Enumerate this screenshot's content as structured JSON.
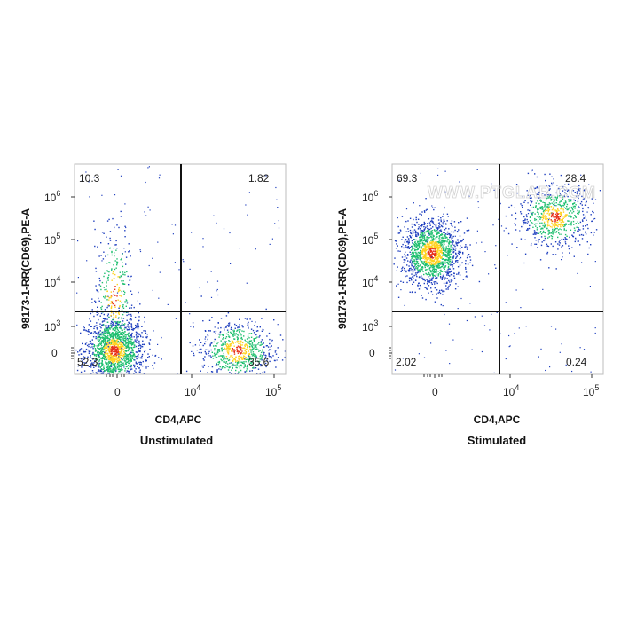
{
  "chart_data": [
    {
      "type": "scatter",
      "subtype": "flow-cytometry-density-dot-plot",
      "condition": "Unstimulated",
      "xlabel": "CD4,APC",
      "ylabel": "98173-1-RR(CD69),PE-A",
      "x_axis": {
        "scale": "biexponential",
        "tick_labels": [
          "0",
          "10^4",
          "10^5"
        ],
        "range": [
          -2000,
          120000
        ]
      },
      "y_axis": {
        "scale": "biexponential",
        "tick_labels": [
          "0",
          "10^3",
          "10^4",
          "10^5",
          "10^6"
        ],
        "range": [
          -1000,
          1000000
        ]
      },
      "gate": {
        "x": 8000,
        "y": 1700
      },
      "quadrants": {
        "top_left": "10.3",
        "top_right": "1.82",
        "bottom_left": "52.3",
        "bottom_right": "35.6"
      },
      "populations": [
        {
          "name": "CD4-CD69-",
          "x_center": 0,
          "y_center": 200,
          "density": "high"
        },
        {
          "name": "CD4+CD69-",
          "x_center": 30000,
          "y_center": 200,
          "density": "medium"
        },
        {
          "name": "CD4-CD69+",
          "x_center": 0,
          "y_center": 8000,
          "density": "low"
        }
      ],
      "legend": "none",
      "grid": false
    },
    {
      "type": "scatter",
      "subtype": "flow-cytometry-density-dot-plot",
      "condition": "Stimulated",
      "xlabel": "CD4,APC",
      "ylabel": "98173-1-RR(CD69),PE-A",
      "x_axis": {
        "scale": "biexponential",
        "tick_labels": [
          "0",
          "10^4",
          "10^5"
        ],
        "range": [
          -2000,
          120000
        ]
      },
      "y_axis": {
        "scale": "biexponential",
        "tick_labels": [
          "0",
          "10^3",
          "10^4",
          "10^5",
          "10^6"
        ],
        "range": [
          -1000,
          1000000
        ]
      },
      "gate": {
        "x": 8000,
        "y": 1700
      },
      "quadrants": {
        "top_left": "69.3",
        "top_right": "28.4",
        "bottom_left": "2.02",
        "bottom_right": "0.24"
      },
      "populations": [
        {
          "name": "CD4-CD69+",
          "x_center": 0,
          "y_center": 40000,
          "density": "high"
        },
        {
          "name": "CD4+CD69+",
          "x_center": 30000,
          "y_center": 150000,
          "density": "medium"
        }
      ],
      "legend": "none",
      "grid": false
    }
  ],
  "watermark": "WWW.PTGLAB.COM",
  "colors": {
    "density_low": "#1f3fbf",
    "density_mid": "#1fbf6f",
    "density_high": "#ffd21f",
    "density_peak": "#e8301a",
    "gate_line": "#111111",
    "frame": "#bdbdbd"
  }
}
